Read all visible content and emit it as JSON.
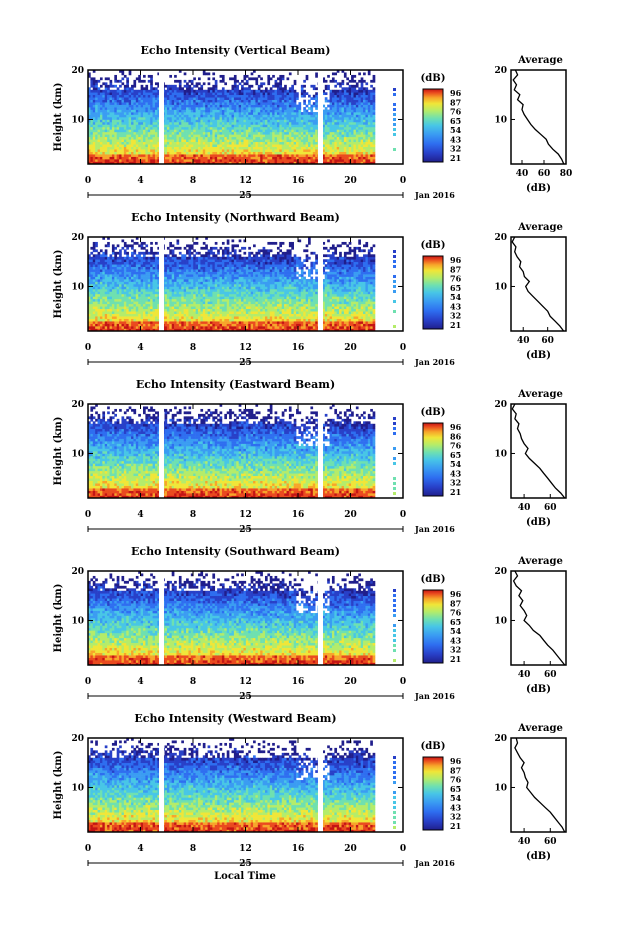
{
  "figure": {
    "xlabel": "Local Time",
    "date_label": "Jan 2016",
    "day_label": "25",
    "colorbar_label": "(dB)",
    "avg_title": "Average",
    "avg_xlabel": "(dB)",
    "colors": {
      "scale": [
        "#201e8c",
        "#2840c8",
        "#2e6ef0",
        "#3a9cf2",
        "#48c6e6",
        "#6fe0b0",
        "#b4ec6a",
        "#f0e638",
        "#f7a52a",
        "#ea4a1e",
        "#c41414"
      ]
    }
  },
  "chart_data": [
    {
      "type": "heatmap",
      "title": "Echo Intensity (Vertical Beam)",
      "ylabel": "Height (km)",
      "xlabel": "",
      "x_ticks": [
        "0",
        "4",
        "8",
        "12",
        "16",
        "20",
        "0"
      ],
      "y_ticks": [
        "20",
        "10"
      ],
      "xlim": [
        0,
        24
      ],
      "ylim": [
        1,
        20
      ],
      "colorbar_ticks": [
        "96",
        "87",
        "76",
        "65",
        "54",
        "43",
        "32",
        "21"
      ],
      "avg": {
        "x_ticks": [
          "40",
          "60",
          "80"
        ],
        "xlim": [
          30,
          80
        ],
        "ylim": [
          1,
          20
        ],
        "profile": [
          [
            78,
            1
          ],
          [
            76,
            2
          ],
          [
            73,
            3
          ],
          [
            68,
            4
          ],
          [
            64,
            5
          ],
          [
            62,
            6
          ],
          [
            57,
            7
          ],
          [
            52,
            8
          ],
          [
            48,
            9
          ],
          [
            45,
            10
          ],
          [
            42,
            11
          ],
          [
            40,
            12
          ],
          [
            41,
            13
          ],
          [
            36,
            14
          ],
          [
            38,
            15
          ],
          [
            33,
            16
          ],
          [
            35,
            17
          ],
          [
            32,
            18
          ],
          [
            36,
            19
          ],
          [
            34,
            20
          ]
        ]
      }
    },
    {
      "type": "heatmap",
      "title": "Echo Intensity (Northward Beam)",
      "ylabel": "Height (km)",
      "xlabel": "",
      "x_ticks": [
        "0",
        "4",
        "8",
        "12",
        "16",
        "20",
        "0"
      ],
      "y_ticks": [
        "20",
        "10"
      ],
      "xlim": [
        0,
        24
      ],
      "ylim": [
        1,
        20
      ],
      "colorbar_ticks": [
        "96",
        "87",
        "76",
        "65",
        "54",
        "43",
        "32",
        "21"
      ],
      "avg": {
        "x_ticks": [
          "40",
          "60"
        ],
        "xlim": [
          30,
          75
        ],
        "ylim": [
          1,
          20
        ],
        "profile": [
          [
            73,
            1
          ],
          [
            70,
            2
          ],
          [
            66,
            3
          ],
          [
            62,
            4
          ],
          [
            60,
            5
          ],
          [
            56,
            6
          ],
          [
            52,
            7
          ],
          [
            48,
            8
          ],
          [
            44,
            9
          ],
          [
            42,
            10
          ],
          [
            45,
            11
          ],
          [
            41,
            12
          ],
          [
            40,
            13
          ],
          [
            37,
            14
          ],
          [
            38,
            15
          ],
          [
            35,
            16
          ],
          [
            33,
            17
          ],
          [
            34,
            18
          ],
          [
            31,
            19
          ],
          [
            33,
            20
          ]
        ]
      }
    },
    {
      "type": "heatmap",
      "title": "Echo Intensity (Eastward Beam)",
      "ylabel": "Height (km)",
      "xlabel": "",
      "x_ticks": [
        "0",
        "4",
        "8",
        "12",
        "16",
        "20",
        "0"
      ],
      "y_ticks": [
        "20",
        "10"
      ],
      "xlim": [
        0,
        24
      ],
      "ylim": [
        1,
        20
      ],
      "colorbar_ticks": [
        "96",
        "86",
        "76",
        "65",
        "54",
        "43",
        "32",
        "21"
      ],
      "avg": {
        "x_ticks": [
          "40",
          "60"
        ],
        "xlim": [
          30,
          72
        ],
        "ylim": [
          1,
          20
        ],
        "profile": [
          [
            71,
            1
          ],
          [
            68,
            2
          ],
          [
            64,
            3
          ],
          [
            61,
            4
          ],
          [
            58,
            5
          ],
          [
            55,
            6
          ],
          [
            52,
            7
          ],
          [
            48,
            8
          ],
          [
            44,
            9
          ],
          [
            41,
            10
          ],
          [
            43,
            11
          ],
          [
            40,
            12
          ],
          [
            38,
            13
          ],
          [
            37,
            14
          ],
          [
            35,
            15
          ],
          [
            36,
            16
          ],
          [
            33,
            17
          ],
          [
            34,
            18
          ],
          [
            31,
            19
          ],
          [
            33,
            20
          ]
        ]
      }
    },
    {
      "type": "heatmap",
      "title": "Echo Intensity (Southward Beam)",
      "ylabel": "Height (km)",
      "xlabel": "",
      "x_ticks": [
        "0",
        "4",
        "8",
        "12",
        "16",
        "20",
        "0"
      ],
      "y_ticks": [
        "20",
        "10"
      ],
      "xlim": [
        0,
        24
      ],
      "ylim": [
        1,
        20
      ],
      "colorbar_ticks": [
        "96",
        "87",
        "76",
        "65",
        "54",
        "43",
        "32",
        "21"
      ],
      "avg": {
        "x_ticks": [
          "40",
          "60"
        ],
        "xlim": [
          30,
          72
        ],
        "ylim": [
          1,
          20
        ],
        "profile": [
          [
            71,
            1
          ],
          [
            68,
            2
          ],
          [
            65,
            3
          ],
          [
            62,
            4
          ],
          [
            58,
            5
          ],
          [
            55,
            6
          ],
          [
            52,
            7
          ],
          [
            47,
            8
          ],
          [
            44,
            9
          ],
          [
            40,
            10
          ],
          [
            42,
            11
          ],
          [
            40,
            12
          ],
          [
            37,
            13
          ],
          [
            39,
            14
          ],
          [
            36,
            15
          ],
          [
            38,
            16
          ],
          [
            34,
            17
          ],
          [
            32,
            18
          ],
          [
            35,
            19
          ],
          [
            33,
            20
          ]
        ]
      }
    },
    {
      "type": "heatmap",
      "title": "Echo Intensity (Westward Beam)",
      "ylabel": "Height (km)",
      "xlabel": "",
      "x_ticks": [
        "0",
        "4",
        "8",
        "12",
        "16",
        "20",
        "0"
      ],
      "y_ticks": [
        "20",
        "10"
      ],
      "xlim": [
        0,
        24
      ],
      "ylim": [
        1,
        20
      ],
      "colorbar_ticks": [
        "96",
        "87",
        "76",
        "65",
        "54",
        "43",
        "32",
        "21"
      ],
      "avg": {
        "x_ticks": [
          "40",
          "60"
        ],
        "xlim": [
          30,
          72
        ],
        "ylim": [
          1,
          20
        ],
        "profile": [
          [
            71,
            1
          ],
          [
            69,
            2
          ],
          [
            66,
            3
          ],
          [
            63,
            4
          ],
          [
            60,
            5
          ],
          [
            56,
            6
          ],
          [
            52,
            7
          ],
          [
            48,
            8
          ],
          [
            45,
            9
          ],
          [
            42,
            10
          ],
          [
            43,
            11
          ],
          [
            41,
            12
          ],
          [
            40,
            13
          ],
          [
            38,
            14
          ],
          [
            40,
            15
          ],
          [
            37,
            16
          ],
          [
            35,
            17
          ],
          [
            33,
            18
          ],
          [
            35,
            19
          ],
          [
            34,
            20
          ]
        ]
      }
    }
  ]
}
